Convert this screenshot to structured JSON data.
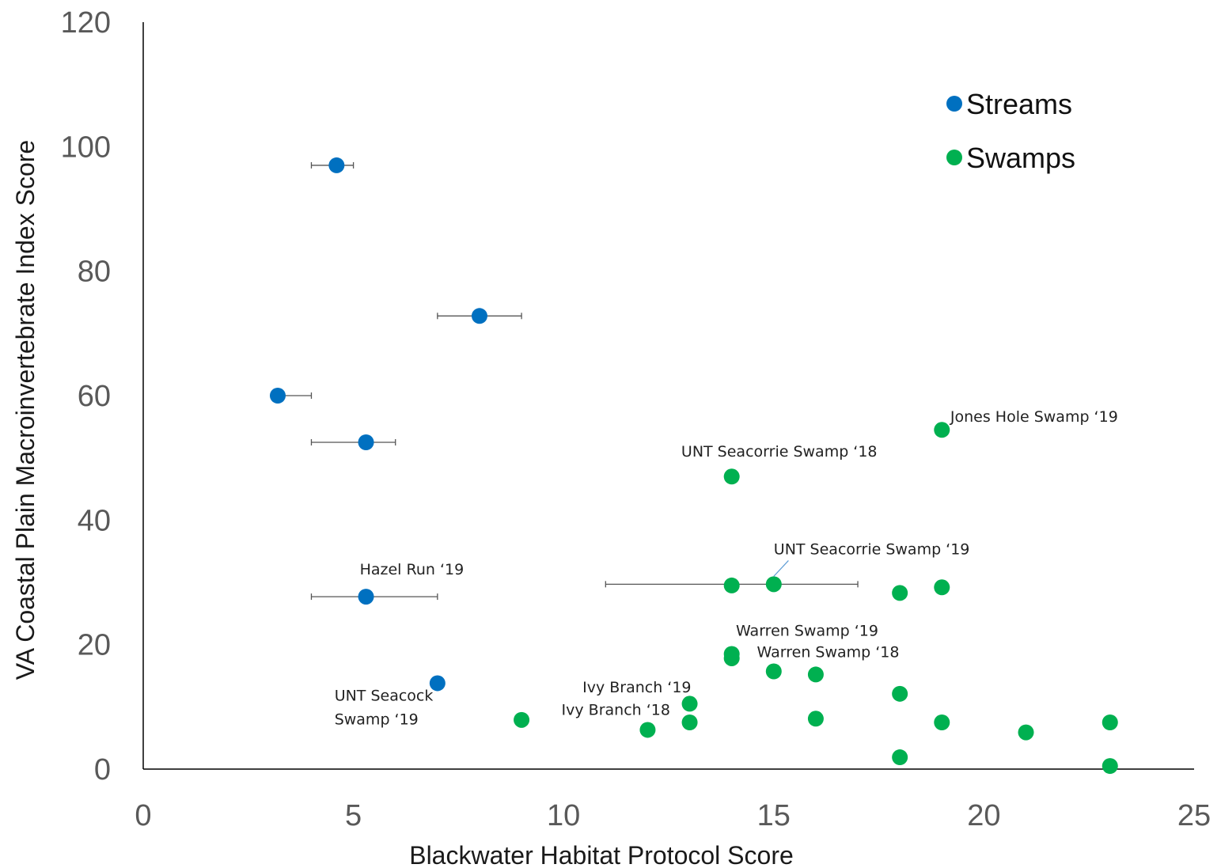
{
  "chart_data": {
    "type": "scatter",
    "title": "",
    "xlabel": "Blackwater Habitat Protocol Score",
    "ylabel": "VA Coastal Plain Macroinvertebrate Index Score",
    "xlim": [
      0,
      25
    ],
    "ylim": [
      0,
      120
    ],
    "xticks": [
      "0",
      "5",
      "10",
      "15",
      "20",
      "25"
    ],
    "yticks": [
      "0",
      "20",
      "40",
      "60",
      "80",
      "100",
      "120"
    ],
    "grid": false,
    "legend_position": "top-right",
    "colors": {
      "Streams": "#0070c0",
      "Swamps": "#00b050",
      "axis": "#000000",
      "error_bar": "#555555"
    },
    "series": [
      {
        "name": "Streams",
        "points": [
          {
            "x": 4.6,
            "y": 97,
            "xerr": [
              4.0,
              5.0
            ]
          },
          {
            "x": 8.0,
            "y": 72.8,
            "xerr": [
              7.0,
              9.0
            ]
          },
          {
            "x": 3.2,
            "y": 60,
            "xerr": [
              3.2,
              4.0
            ]
          },
          {
            "x": 5.3,
            "y": 52.5,
            "xerr": [
              4.0,
              6.0
            ]
          },
          {
            "x": 5.3,
            "y": 27.7,
            "xerr": [
              4.0,
              7.0
            ]
          },
          {
            "x": 7.0,
            "y": 13.8
          }
        ]
      },
      {
        "name": "Swamps",
        "points": [
          {
            "x": 19,
            "y": 54.5
          },
          {
            "x": 14,
            "y": 47
          },
          {
            "x": 14,
            "y": 29.5
          },
          {
            "x": 15,
            "y": 29.7,
            "xerr": [
              11.0,
              17.0
            ]
          },
          {
            "x": 18,
            "y": 28.3
          },
          {
            "x": 19,
            "y": 29.2
          },
          {
            "x": 14,
            "y": 18.5
          },
          {
            "x": 14,
            "y": 17.8
          },
          {
            "x": 15,
            "y": 15.7
          },
          {
            "x": 16,
            "y": 15.2
          },
          {
            "x": 18,
            "y": 12.1
          },
          {
            "x": 13,
            "y": 10.5
          },
          {
            "x": 9,
            "y": 7.9
          },
          {
            "x": 13,
            "y": 7.5
          },
          {
            "x": 16,
            "y": 8.1
          },
          {
            "x": 19,
            "y": 7.5
          },
          {
            "x": 12,
            "y": 6.3
          },
          {
            "x": 21,
            "y": 5.9
          },
          {
            "x": 23,
            "y": 7.5
          },
          {
            "x": 18,
            "y": 1.9
          },
          {
            "x": 23,
            "y": 0.5
          }
        ]
      }
    ],
    "annotations": [
      {
        "text": "Jones Hole Swamp ‘19",
        "x": 19.2,
        "y": 55.8
      },
      {
        "text": "UNT Seacorrie Swamp ‘18",
        "x": 12.8,
        "y": 50.2
      },
      {
        "text": "UNT Seacorrie Swamp ‘19",
        "x": 15.0,
        "y": 34.5
      },
      {
        "text": "Hazel Run ‘19",
        "x": 5.15,
        "y": 31.3
      },
      {
        "text": "Warren Swamp ‘19",
        "x": 14.1,
        "y": 21.4
      },
      {
        "text": "Warren Swamp ‘18",
        "x": 14.6,
        "y": 18.0
      },
      {
        "text": "Ivy Branch ‘19",
        "x": 10.45,
        "y": 12.3
      },
      {
        "text": "Ivy Branch ‘18",
        "x": 9.95,
        "y": 8.7
      },
      {
        "text": "UNT Seacock",
        "x": 4.55,
        "y": 11.0
      },
      {
        "text": "Swamp ‘19",
        "x": 4.55,
        "y": 7.2
      }
    ]
  }
}
